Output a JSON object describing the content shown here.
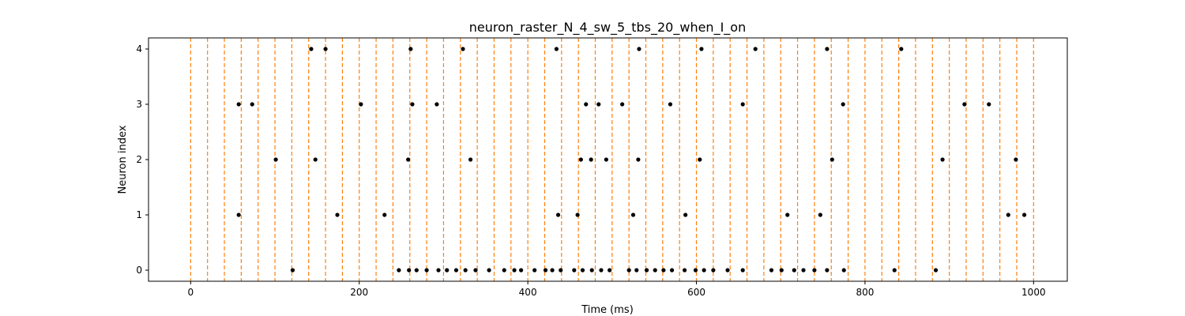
{
  "chart_data": {
    "type": "scatter",
    "title": "neuron_raster_N_4_sw_5_tbs_20_when_I_on",
    "xlabel": "Time (ms)",
    "ylabel": "Neuron index",
    "xlim": [
      -50,
      1040
    ],
    "ylim": [
      -0.2,
      4.2
    ],
    "xticks": [
      0,
      200,
      400,
      600,
      800,
      1000
    ],
    "yticks": [
      0,
      1,
      2,
      3,
      4
    ],
    "grid": false,
    "legend": "none",
    "vlines": {
      "color": "#ff7f0e",
      "style": "dashed",
      "x": [
        0,
        20,
        40,
        60,
        80,
        100,
        120,
        140,
        160,
        180,
        200,
        220,
        240,
        260,
        280,
        300,
        320,
        340,
        360,
        380,
        400,
        420,
        440,
        460,
        480,
        500,
        520,
        540,
        560,
        580,
        600,
        620,
        640,
        660,
        680,
        700,
        720,
        740,
        760,
        780,
        800,
        820,
        840,
        860,
        880,
        900,
        920,
        940,
        960,
        980,
        1000
      ]
    },
    "series": [
      {
        "color": "#000000",
        "points": [
          [
            143,
            4
          ],
          [
            160,
            4
          ],
          [
            261,
            4
          ],
          [
            323,
            4
          ],
          [
            434,
            4
          ],
          [
            532,
            4
          ],
          [
            606,
            4
          ],
          [
            670,
            4
          ],
          [
            755,
            4
          ],
          [
            843,
            4
          ],
          [
            57,
            3
          ],
          [
            73,
            3
          ],
          [
            202,
            3
          ],
          [
            263,
            3
          ],
          [
            292,
            3
          ],
          [
            469,
            3
          ],
          [
            484,
            3
          ],
          [
            512,
            3
          ],
          [
            569,
            3
          ],
          [
            655,
            3
          ],
          [
            774,
            3
          ],
          [
            918,
            3
          ],
          [
            947,
            3
          ],
          [
            101,
            2
          ],
          [
            148,
            2
          ],
          [
            258,
            2
          ],
          [
            332,
            2
          ],
          [
            463,
            2
          ],
          [
            475,
            2
          ],
          [
            493,
            2
          ],
          [
            531,
            2
          ],
          [
            604,
            2
          ],
          [
            761,
            2
          ],
          [
            892,
            2
          ],
          [
            979,
            2
          ],
          [
            57,
            1
          ],
          [
            174,
            1
          ],
          [
            230,
            1
          ],
          [
            436,
            1
          ],
          [
            459,
            1
          ],
          [
            525,
            1
          ],
          [
            587,
            1
          ],
          [
            708,
            1
          ],
          [
            747,
            1
          ],
          [
            970,
            1
          ],
          [
            989,
            1
          ],
          [
            121,
            0
          ],
          [
            247,
            0
          ],
          [
            259,
            0
          ],
          [
            268,
            0
          ],
          [
            280,
            0
          ],
          [
            294,
            0
          ],
          [
            304,
            0
          ],
          [
            315,
            0
          ],
          [
            326,
            0
          ],
          [
            338,
            0
          ],
          [
            354,
            0
          ],
          [
            372,
            0
          ],
          [
            384,
            0
          ],
          [
            392,
            0
          ],
          [
            408,
            0
          ],
          [
            421,
            0
          ],
          [
            429,
            0
          ],
          [
            439,
            0
          ],
          [
            455,
            0
          ],
          [
            465,
            0
          ],
          [
            476,
            0
          ],
          [
            487,
            0
          ],
          [
            497,
            0
          ],
          [
            520,
            0
          ],
          [
            529,
            0
          ],
          [
            541,
            0
          ],
          [
            551,
            0
          ],
          [
            561,
            0
          ],
          [
            571,
            0
          ],
          [
            586,
            0
          ],
          [
            599,
            0
          ],
          [
            609,
            0
          ],
          [
            620,
            0
          ],
          [
            637,
            0
          ],
          [
            655,
            0
          ],
          [
            689,
            0
          ],
          [
            701,
            0
          ],
          [
            716,
            0
          ],
          [
            727,
            0
          ],
          [
            740,
            0
          ],
          [
            755,
            0
          ],
          [
            775,
            0
          ],
          [
            835,
            0
          ],
          [
            884,
            0
          ]
        ]
      }
    ]
  }
}
